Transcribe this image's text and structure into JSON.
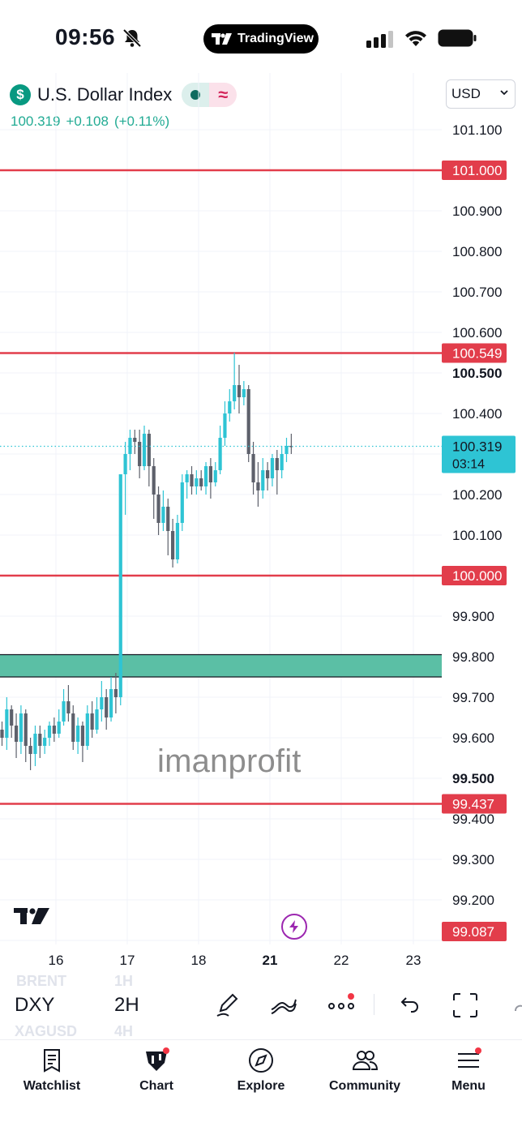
{
  "status_bar": {
    "time": "09:56",
    "island_app": "TradingView"
  },
  "symbol": {
    "name": "U.S. Dollar Index",
    "icon": "dollar-icon",
    "price": "100.319",
    "change": "+0.108",
    "change_pct": "(+0.11%)",
    "currency": "USD"
  },
  "chart": {
    "y_ticks": [
      "101.100",
      "100.900",
      "100.800",
      "100.700",
      "100.600",
      "100.400",
      "100.200",
      "100.100",
      "99.900",
      "99.800",
      "99.700",
      "99.600",
      "99.400",
      "99.300",
      "99.200"
    ],
    "y_ticks_bold": [
      "100.500",
      "99.500"
    ],
    "x_ticks": [
      "16",
      "17",
      "18",
      "21",
      "22",
      "23"
    ],
    "x_tick_bold": "21",
    "last_price_label": "100.319",
    "countdown": "03:14",
    "watermark": "imanprofit"
  },
  "colors": {
    "bull": "#2ec4d4",
    "bear": "#5d606b",
    "level_line": "#e23d4b",
    "zone_fill": "#5bbfa5",
    "accent_teal": "#22ab94"
  },
  "chart_data": {
    "type": "candlestick",
    "symbol": "DXY",
    "interval": "2H",
    "x_labels": [
      "16",
      "17",
      "18",
      "21",
      "22",
      "23"
    ],
    "ylim": [
      99.05,
      101.18
    ],
    "horizontal_levels": [
      "101.000",
      "100.549",
      "100.000",
      "99.437",
      "99.087"
    ],
    "zone": [
      99.75,
      99.805
    ],
    "last_price": 100.319,
    "candles": [
      [
        99.62,
        99.6,
        99.58,
        99.64
      ],
      [
        99.6,
        99.67,
        99.57,
        99.7
      ],
      [
        99.67,
        99.63,
        99.6,
        99.68
      ],
      [
        99.63,
        99.59,
        99.55,
        99.66
      ],
      [
        99.59,
        99.66,
        99.56,
        99.68
      ],
      [
        99.66,
        99.58,
        99.54,
        99.67
      ],
      [
        99.58,
        99.56,
        99.52,
        99.6
      ],
      [
        99.56,
        99.61,
        99.53,
        99.63
      ],
      [
        99.61,
        99.58,
        99.55,
        99.63
      ],
      [
        99.58,
        99.6,
        99.56,
        99.62
      ],
      [
        99.6,
        99.63,
        99.58,
        99.64
      ],
      [
        99.63,
        99.61,
        99.59,
        99.65
      ],
      [
        99.61,
        99.64,
        99.6,
        99.67
      ],
      [
        99.64,
        99.69,
        99.63,
        99.72
      ],
      [
        99.69,
        99.66,
        99.64,
        99.73
      ],
      [
        99.66,
        99.59,
        99.57,
        99.68
      ],
      [
        99.59,
        99.63,
        99.56,
        99.65
      ],
      [
        99.63,
        99.58,
        99.54,
        99.64
      ],
      [
        99.58,
        99.66,
        99.57,
        99.68
      ],
      [
        99.66,
        99.62,
        99.6,
        99.69
      ],
      [
        99.62,
        99.67,
        99.61,
        99.7
      ],
      [
        99.67,
        99.7,
        99.64,
        99.74
      ],
      [
        99.7,
        99.65,
        99.62,
        99.72
      ],
      [
        99.65,
        99.72,
        99.64,
        99.75
      ],
      [
        99.72,
        99.7,
        99.66,
        99.76
      ],
      [
        99.7,
        100.25,
        99.68,
        100.25
      ],
      [
        100.25,
        100.3,
        100.15,
        100.33
      ],
      [
        100.3,
        100.34,
        100.26,
        100.36
      ],
      [
        100.34,
        100.33,
        100.3,
        100.36
      ],
      [
        100.33,
        100.27,
        100.24,
        100.36
      ],
      [
        100.27,
        100.35,
        100.26,
        100.37
      ],
      [
        100.35,
        100.27,
        100.22,
        100.36
      ],
      [
        100.27,
        100.2,
        100.14,
        100.29
      ],
      [
        100.2,
        100.13,
        100.1,
        100.22
      ],
      [
        100.13,
        100.17,
        100.11,
        100.21
      ],
      [
        100.17,
        100.11,
        100.05,
        100.19
      ],
      [
        100.11,
        100.04,
        100.02,
        100.14
      ],
      [
        100.04,
        100.13,
        100.03,
        100.15
      ],
      [
        100.13,
        100.23,
        100.11,
        100.25
      ],
      [
        100.23,
        100.25,
        100.19,
        100.26
      ],
      [
        100.25,
        100.22,
        100.2,
        100.27
      ],
      [
        100.22,
        100.24,
        100.2,
        100.26
      ],
      [
        100.24,
        100.22,
        100.21,
        100.26
      ],
      [
        100.22,
        100.27,
        100.2,
        100.28
      ],
      [
        100.27,
        100.23,
        100.19,
        100.29
      ],
      [
        100.23,
        100.26,
        100.22,
        100.28
      ],
      [
        100.26,
        100.34,
        100.25,
        100.37
      ],
      [
        100.34,
        100.4,
        100.32,
        100.43
      ],
      [
        100.4,
        100.43,
        100.38,
        100.46
      ],
      [
        100.43,
        100.47,
        100.41,
        100.55
      ],
      [
        100.47,
        100.44,
        100.4,
        100.52
      ],
      [
        100.44,
        100.46,
        100.42,
        100.48
      ],
      [
        100.46,
        100.3,
        100.28,
        100.47
      ],
      [
        100.3,
        100.23,
        100.2,
        100.33
      ],
      [
        100.23,
        100.21,
        100.17,
        100.28
      ],
      [
        100.21,
        100.26,
        100.19,
        100.29
      ],
      [
        100.26,
        100.24,
        100.21,
        100.28
      ],
      [
        100.24,
        100.29,
        100.22,
        100.3
      ],
      [
        100.29,
        100.26,
        100.2,
        100.31
      ],
      [
        100.26,
        100.3,
        100.24,
        100.32
      ],
      [
        100.3,
        100.32,
        100.28,
        100.34
      ],
      [
        100.32,
        100.319,
        100.3,
        100.35
      ]
    ]
  },
  "toolbar": {
    "symbol": "DXY",
    "symbol_prev": "BRENT",
    "symbol_next": "XAGUSD",
    "interval": "2H",
    "interval_prev": "1H",
    "interval_next": "4H"
  },
  "nav": [
    {
      "label": "Watchlist",
      "icon": "watchlist-icon"
    },
    {
      "label": "Chart",
      "icon": "chart-icon"
    },
    {
      "label": "Explore",
      "icon": "compass-icon"
    },
    {
      "label": "Community",
      "icon": "community-icon"
    },
    {
      "label": "Menu",
      "icon": "menu-icon"
    }
  ]
}
